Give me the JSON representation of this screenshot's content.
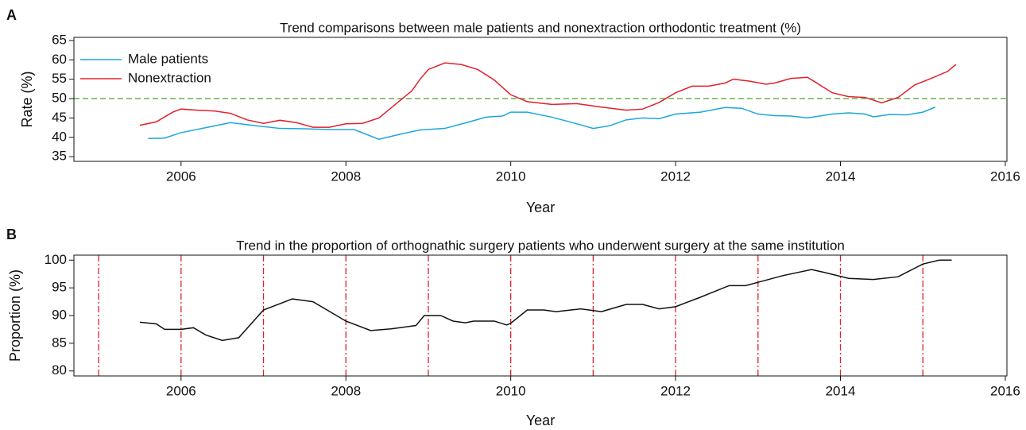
{
  "chart_data": [
    {
      "type": "line",
      "panel": "A",
      "title": "Trend comparisons between male patients and nonextraction orthodontic treatment (%)",
      "x_label": "Year",
      "y_label": "Rate (%)",
      "xlim": [
        2004.7,
        2016.02
      ],
      "xticks": [
        2006,
        2008,
        2010,
        2012,
        2014,
        2016
      ],
      "ylim": [
        33.8,
        65.8
      ],
      "yticks": [
        35,
        40,
        45,
        50,
        55,
        60,
        65
      ],
      "legend": "upper left",
      "hline": 50,
      "hline_color": "#6ab04c",
      "series": [
        {
          "name": "Male patients",
          "color": "#1aa7dd",
          "x": [
            2005.6,
            2005.8,
            2006.0,
            2006.3,
            2006.6,
            2006.9,
            2007.2,
            2007.5,
            2007.8,
            2008.1,
            2008.4,
            2008.7,
            2008.9,
            2009.2,
            2009.5,
            2009.7,
            2009.9,
            2010.0,
            2010.2,
            2010.5,
            2010.8,
            2011.0,
            2011.2,
            2011.4,
            2011.6,
            2011.8,
            2012.0,
            2012.3,
            2012.6,
            2012.8,
            2013.0,
            2013.2,
            2013.4,
            2013.6,
            2013.9,
            2014.1,
            2014.3,
            2014.4,
            2014.6,
            2014.8,
            2015.0,
            2015.15
          ],
          "values": [
            39.7,
            39.8,
            41.2,
            42.5,
            43.8,
            43.0,
            42.3,
            42.2,
            42.0,
            42.0,
            39.5,
            41.0,
            41.9,
            42.3,
            44.0,
            45.2,
            45.5,
            46.5,
            46.5,
            45.2,
            43.5,
            42.3,
            43.0,
            44.5,
            45.0,
            44.8,
            46.0,
            46.5,
            47.7,
            47.5,
            46.0,
            45.6,
            45.5,
            45.0,
            46.0,
            46.3,
            46.0,
            45.3,
            45.9,
            45.8,
            46.5,
            47.8
          ]
        },
        {
          "name": "Nonextraction",
          "color": "#e0202a",
          "x": [
            2005.5,
            2005.7,
            2005.9,
            2006.0,
            2006.2,
            2006.4,
            2006.6,
            2006.8,
            2007.0,
            2007.2,
            2007.4,
            2007.6,
            2007.8,
            2008.0,
            2008.2,
            2008.4,
            2008.6,
            2008.8,
            2008.9,
            2009.0,
            2009.2,
            2009.4,
            2009.6,
            2009.8,
            2010.0,
            2010.2,
            2010.5,
            2010.8,
            2011.1,
            2011.4,
            2011.6,
            2011.8,
            2012.0,
            2012.2,
            2012.4,
            2012.6,
            2012.7,
            2012.9,
            2013.1,
            2013.2,
            2013.4,
            2013.6,
            2013.7,
            2013.9,
            2014.1,
            2014.3,
            2014.5,
            2014.7,
            2014.9,
            2015.1,
            2015.3,
            2015.4
          ],
          "values": [
            43.1,
            44.0,
            46.5,
            47.3,
            47.0,
            46.8,
            46.2,
            44.5,
            43.6,
            44.4,
            43.8,
            42.6,
            42.6,
            43.5,
            43.6,
            45.0,
            48.5,
            52.0,
            55.0,
            57.5,
            59.2,
            58.8,
            57.5,
            54.8,
            51.0,
            49.2,
            48.5,
            48.7,
            47.8,
            47.0,
            47.3,
            49.0,
            51.5,
            53.2,
            53.2,
            54.0,
            55.0,
            54.5,
            53.7,
            54.0,
            55.2,
            55.5,
            54.2,
            51.5,
            50.5,
            50.3,
            48.9,
            50.3,
            53.5,
            55.2,
            57.0,
            58.8
          ]
        }
      ]
    },
    {
      "type": "line",
      "panel": "B",
      "title": "Trend in the proportion of orthognathic surgery patients who underwent surgery at the same institution",
      "x_label": "Year",
      "y_label": "Proportion (%)",
      "xlim": [
        2004.7,
        2016.02
      ],
      "xticks": [
        2006,
        2008,
        2010,
        2012,
        2014,
        2016
      ],
      "ylim": [
        79.1,
        100.9
      ],
      "yticks": [
        80,
        85,
        90,
        95,
        100
      ],
      "vlines": [
        2005,
        2006,
        2007,
        2008,
        2009,
        2010,
        2011,
        2012,
        2013,
        2014,
        2015
      ],
      "vline_color": "#e0202a",
      "series": [
        {
          "color": "#111111",
          "x": [
            2005.5,
            2005.7,
            2005.8,
            2006.0,
            2006.15,
            2006.3,
            2006.5,
            2006.7,
            2007.0,
            2007.35,
            2007.6,
            2008.0,
            2008.3,
            2008.55,
            2008.85,
            2008.95,
            2009.15,
            2009.3,
            2009.45,
            2009.55,
            2009.8,
            2009.95,
            2010.0,
            2010.2,
            2010.4,
            2010.55,
            2010.85,
            2011.1,
            2011.4,
            2011.6,
            2011.8,
            2012.0,
            2012.3,
            2012.65,
            2012.85,
            2013.0,
            2013.3,
            2013.65,
            2013.8,
            2014.1,
            2014.4,
            2014.7,
            2015.0,
            2015.2,
            2015.35
          ],
          "values": [
            88.8,
            88.5,
            87.5,
            87.5,
            87.8,
            86.5,
            85.5,
            86.0,
            91.0,
            93.0,
            92.5,
            89.0,
            87.3,
            87.6,
            88.2,
            90.0,
            90.0,
            89.0,
            88.7,
            89.0,
            89.0,
            88.3,
            88.6,
            91.0,
            91.0,
            90.7,
            91.2,
            90.7,
            92.0,
            92.0,
            91.2,
            91.6,
            93.3,
            95.4,
            95.4,
            96.0,
            97.2,
            98.3,
            97.8,
            96.7,
            96.5,
            97.0,
            99.3,
            100.0,
            100.0
          ]
        }
      ]
    }
  ]
}
